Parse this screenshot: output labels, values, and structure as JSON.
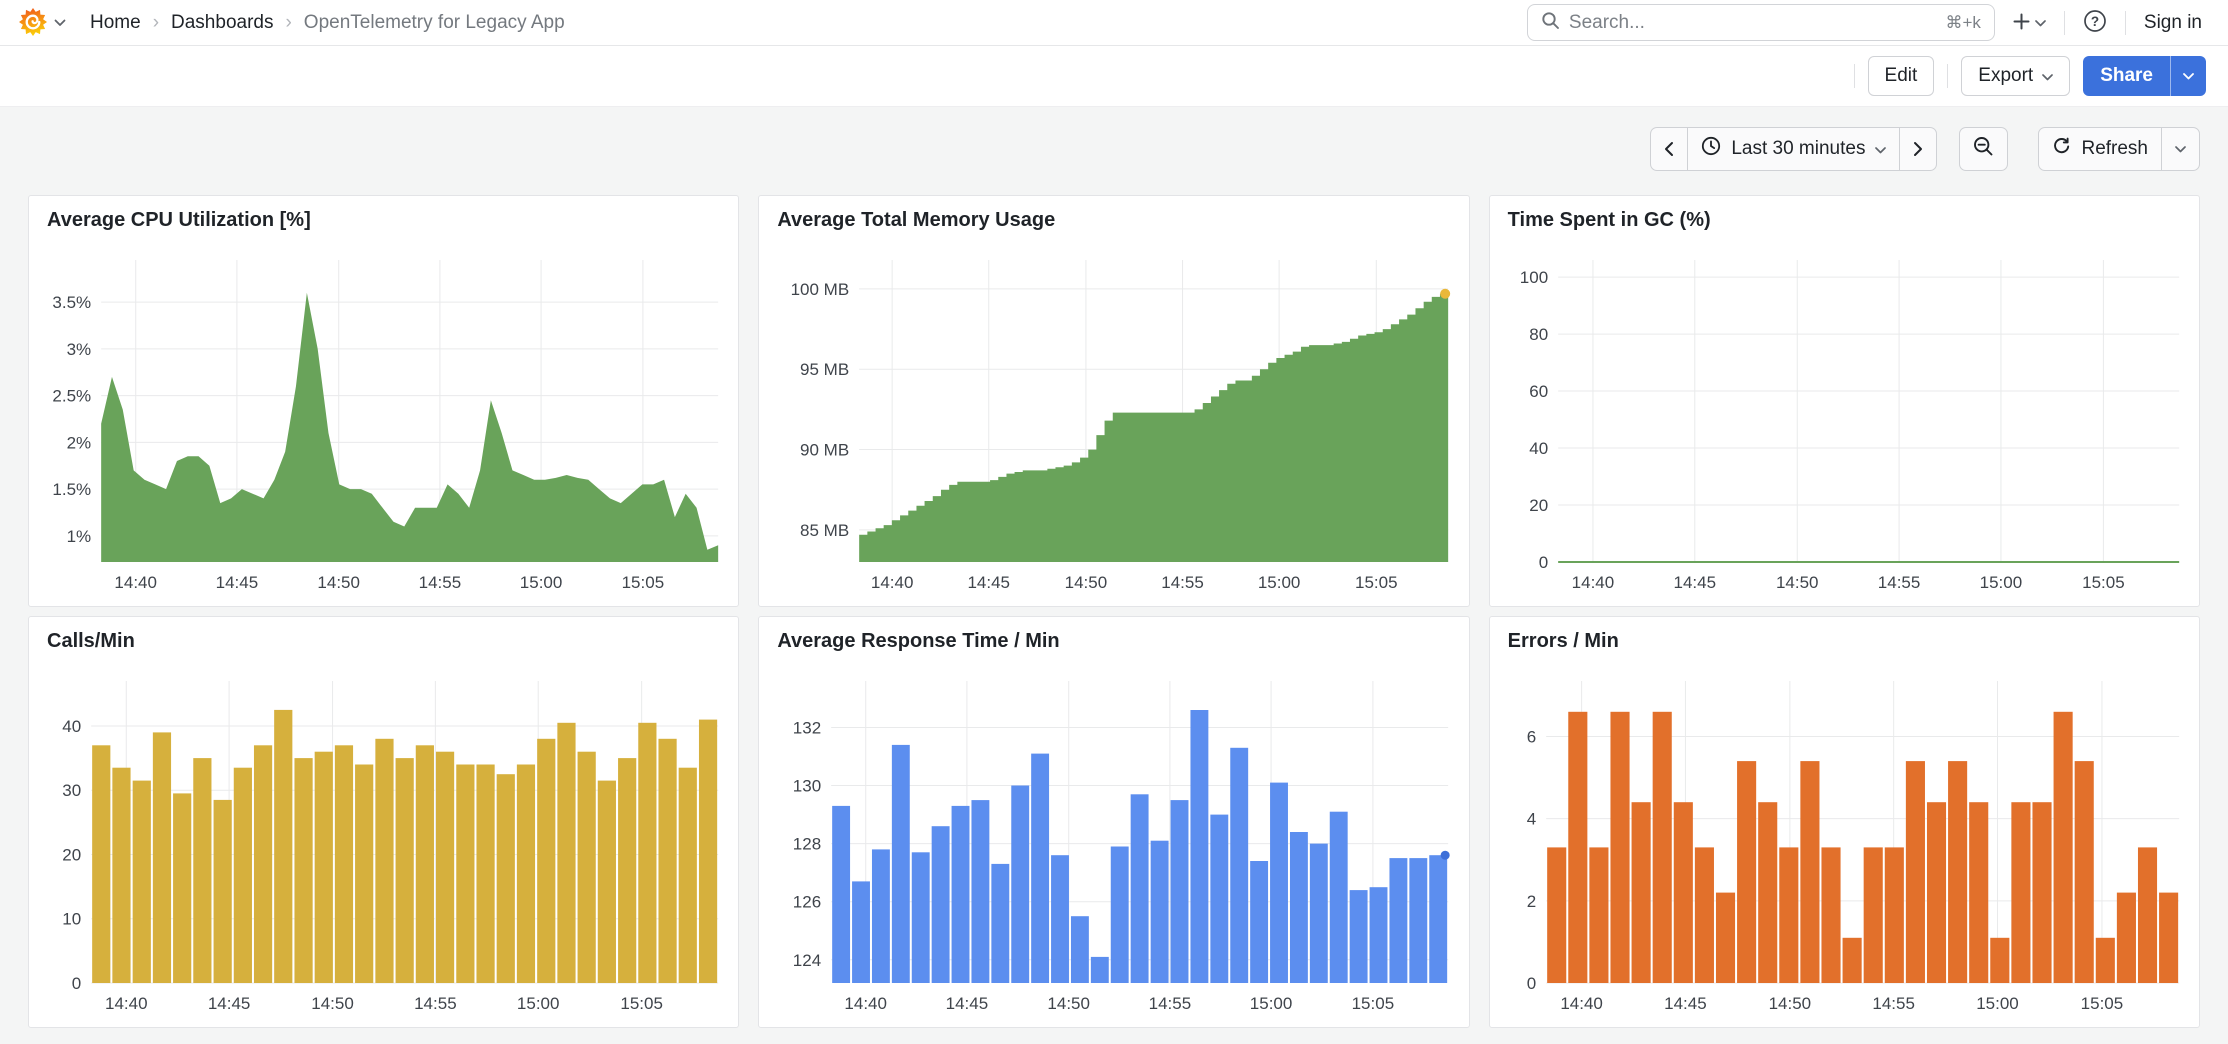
{
  "header": {
    "breadcrumb": {
      "home": "Home",
      "dashboards": "Dashboards",
      "current": "OpenTelemetry for Legacy App"
    },
    "search": {
      "placeholder": "Search...",
      "shortcut": "⌘+k"
    },
    "sign_in": "Sign in"
  },
  "toolbar": {
    "edit": "Edit",
    "export": "Export",
    "share": "Share"
  },
  "timebar": {
    "range_label": "Last 30 minutes",
    "refresh_label": "Refresh"
  },
  "colors": {
    "green": "#69a35a",
    "yellow_bar": "#d6b03d",
    "blue_bar": "#5c8eef",
    "orange_bar": "#e2702b",
    "memory_marker": "#eab839",
    "response_marker": "#3d6fd8",
    "share_button": "#3b71dc"
  },
  "icons": {
    "grafana-logo": "flame-spiral",
    "search-icon": "magnifier",
    "plus-icon": "+",
    "chevron-down-icon": "v",
    "help-icon": "?",
    "clock-icon": "clock",
    "chevron-left-icon": "<",
    "chevron-right-icon": ">",
    "zoom-out-icon": "magnifier-minus",
    "refresh-icon": "circular-arrows"
  },
  "chart_data": [
    {
      "type": "area",
      "title": "Average CPU Utilization [%]",
      "color": "#69a35a",
      "ylim": [
        0.72,
        3.95
      ],
      "yticks": [
        {
          "v": 1,
          "label": "1%"
        },
        {
          "v": 1.5,
          "label": "1.5%"
        },
        {
          "v": 2,
          "label": "2%"
        },
        {
          "v": 2.5,
          "label": "2.5%"
        },
        {
          "v": 3,
          "label": "3%"
        },
        {
          "v": 3.5,
          "label": "3.5%"
        }
      ],
      "xticks": [
        {
          "f": 0.056,
          "label": "14:40"
        },
        {
          "f": 0.22,
          "label": "14:45"
        },
        {
          "f": 0.385,
          "label": "14:50"
        },
        {
          "f": 0.549,
          "label": "14:55"
        },
        {
          "f": 0.713,
          "label": "15:00"
        },
        {
          "f": 0.878,
          "label": "15:05"
        }
      ],
      "layout": {
        "axis_width": 52,
        "grid": true
      },
      "values": [
        2.2,
        2.7,
        2.35,
        1.7,
        1.6,
        1.55,
        1.5,
        1.8,
        1.85,
        1.85,
        1.75,
        1.35,
        1.4,
        1.5,
        1.45,
        1.4,
        1.6,
        1.9,
        2.6,
        3.6,
        3.0,
        2.1,
        1.55,
        1.5,
        1.5,
        1.45,
        1.3,
        1.15,
        1.1,
        1.3,
        1.3,
        1.3,
        1.55,
        1.45,
        1.3,
        1.7,
        2.45,
        2.1,
        1.7,
        1.65,
        1.6,
        1.6,
        1.62,
        1.65,
        1.62,
        1.6,
        1.5,
        1.4,
        1.35,
        1.45,
        1.55,
        1.55,
        1.6,
        1.2,
        1.45,
        1.3,
        0.85,
        0.9
      ]
    },
    {
      "type": "step-area",
      "title": "Average Total Memory Usage",
      "color": "#69a35a",
      "ylim": [
        83.0,
        101.8
      ],
      "yticks": [
        {
          "v": 85,
          "label": "85 MB"
        },
        {
          "v": 90,
          "label": "90 MB"
        },
        {
          "v": 95,
          "label": "95 MB"
        },
        {
          "v": 100,
          "label": "100 MB"
        }
      ],
      "xticks": [
        {
          "f": 0.056,
          "label": "14:40"
        },
        {
          "f": 0.22,
          "label": "14:45"
        },
        {
          "f": 0.385,
          "label": "14:50"
        },
        {
          "f": 0.549,
          "label": "14:55"
        },
        {
          "f": 0.713,
          "label": "15:00"
        },
        {
          "f": 0.878,
          "label": "15:05"
        }
      ],
      "layout": {
        "axis_width": 80,
        "grid": true
      },
      "end_marker": {
        "color": "#eab839",
        "r": 5
      },
      "values": [
        84.7,
        84.9,
        85.1,
        85.3,
        85.6,
        85.9,
        86.2,
        86.5,
        86.8,
        87.1,
        87.5,
        87.8,
        88.0,
        88.0,
        88.0,
        88.0,
        88.1,
        88.3,
        88.5,
        88.6,
        88.7,
        88.7,
        88.7,
        88.8,
        88.9,
        89.0,
        89.2,
        89.5,
        90.0,
        90.9,
        91.8,
        92.3,
        92.3,
        92.3,
        92.3,
        92.3,
        92.3,
        92.3,
        92.3,
        92.3,
        92.3,
        92.5,
        92.9,
        93.3,
        93.7,
        94.1,
        94.3,
        94.3,
        94.6,
        95.0,
        95.4,
        95.7,
        95.9,
        96.1,
        96.4,
        96.5,
        96.5,
        96.5,
        96.6,
        96.7,
        96.9,
        97.1,
        97.2,
        97.3,
        97.5,
        97.8,
        98.1,
        98.4,
        98.8,
        99.2,
        99.5,
        99.7,
        99.7
      ]
    },
    {
      "type": "flatline",
      "title": "Time Spent in GC (%)",
      "color": "#69a35a",
      "ylim": [
        0,
        106
      ],
      "value": 0,
      "yticks": [
        {
          "v": 0,
          "label": "0"
        },
        {
          "v": 20,
          "label": "20"
        },
        {
          "v": 40,
          "label": "40"
        },
        {
          "v": 60,
          "label": "60"
        },
        {
          "v": 80,
          "label": "80"
        },
        {
          "v": 100,
          "label": "100"
        }
      ],
      "xticks": [
        {
          "f": 0.056,
          "label": "14:40"
        },
        {
          "f": 0.22,
          "label": "14:45"
        },
        {
          "f": 0.385,
          "label": "14:50"
        },
        {
          "f": 0.549,
          "label": "14:55"
        },
        {
          "f": 0.713,
          "label": "15:00"
        },
        {
          "f": 0.878,
          "label": "15:05"
        }
      ],
      "layout": {
        "axis_width": 48,
        "grid": true
      }
    },
    {
      "type": "bars",
      "title": "Calls/Min",
      "color": "#d6b03d",
      "ylim": [
        0,
        47
      ],
      "yticks": [
        {
          "v": 0,
          "label": "0"
        },
        {
          "v": 10,
          "label": "10"
        },
        {
          "v": 20,
          "label": "20"
        },
        {
          "v": 30,
          "label": "30"
        },
        {
          "v": 40,
          "label": "40"
        }
      ],
      "xticks": [
        {
          "f": 0.056,
          "label": "14:40"
        },
        {
          "f": 0.22,
          "label": "14:45"
        },
        {
          "f": 0.385,
          "label": "14:50"
        },
        {
          "f": 0.549,
          "label": "14:55"
        },
        {
          "f": 0.713,
          "label": "15:00"
        },
        {
          "f": 0.878,
          "label": "15:05"
        }
      ],
      "layout": {
        "axis_width": 42,
        "grid": true
      },
      "values": [
        37,
        33.5,
        31.5,
        39,
        29.5,
        35,
        28.5,
        33.5,
        37,
        42.5,
        35,
        36,
        37,
        34,
        38,
        35,
        37,
        36,
        34,
        34,
        32.5,
        34,
        38,
        40.5,
        36,
        31.5,
        35,
        40.5,
        38,
        33.5,
        41
      ]
    },
    {
      "type": "bars",
      "title": "Average Response Time / Min",
      "color": "#5c8eef",
      "ylim": [
        123.2,
        133.6
      ],
      "yticks": [
        {
          "v": 124,
          "label": "124"
        },
        {
          "v": 126,
          "label": "126"
        },
        {
          "v": 128,
          "label": "128"
        },
        {
          "v": 130,
          "label": "130"
        },
        {
          "v": 132,
          "label": "132"
        }
      ],
      "xticks": [
        {
          "f": 0.056,
          "label": "14:40"
        },
        {
          "f": 0.22,
          "label": "14:45"
        },
        {
          "f": 0.385,
          "label": "14:50"
        },
        {
          "f": 0.549,
          "label": "14:55"
        },
        {
          "f": 0.713,
          "label": "15:00"
        },
        {
          "f": 0.878,
          "label": "15:05"
        }
      ],
      "layout": {
        "axis_width": 52,
        "grid": true
      },
      "end_marker": {
        "color": "#3d6fd8",
        "r": 4.5
      },
      "values": [
        129.3,
        126.7,
        127.8,
        131.4,
        127.7,
        128.6,
        129.3,
        129.5,
        127.3,
        130.0,
        131.1,
        127.6,
        125.5,
        124.1,
        127.9,
        129.7,
        128.1,
        129.5,
        132.6,
        129.0,
        131.3,
        127.4,
        130.1,
        128.4,
        128.0,
        129.1,
        126.4,
        126.5,
        127.5,
        127.5,
        127.6
      ]
    },
    {
      "type": "bars",
      "title": "Errors / Min",
      "color": "#e2702b",
      "ylim": [
        0,
        7.35
      ],
      "yticks": [
        {
          "v": 0,
          "label": "0"
        },
        {
          "v": 2,
          "label": "2"
        },
        {
          "v": 4,
          "label": "4"
        },
        {
          "v": 6,
          "label": "6"
        }
      ],
      "xticks": [
        {
          "f": 0.056,
          "label": "14:40"
        },
        {
          "f": 0.22,
          "label": "14:45"
        },
        {
          "f": 0.385,
          "label": "14:50"
        },
        {
          "f": 0.549,
          "label": "14:55"
        },
        {
          "f": 0.713,
          "label": "15:00"
        },
        {
          "f": 0.878,
          "label": "15:05"
        }
      ],
      "layout": {
        "axis_width": 36,
        "grid": true
      },
      "values": [
        3.3,
        6.6,
        3.3,
        6.6,
        4.4,
        6.6,
        4.4,
        3.3,
        2.2,
        5.4,
        4.4,
        3.3,
        5.4,
        3.3,
        1.1,
        3.3,
        3.3,
        5.4,
        4.4,
        5.4,
        4.4,
        1.1,
        4.4,
        4.4,
        6.6,
        5.4,
        1.1,
        2.2,
        3.3,
        2.2
      ]
    }
  ]
}
